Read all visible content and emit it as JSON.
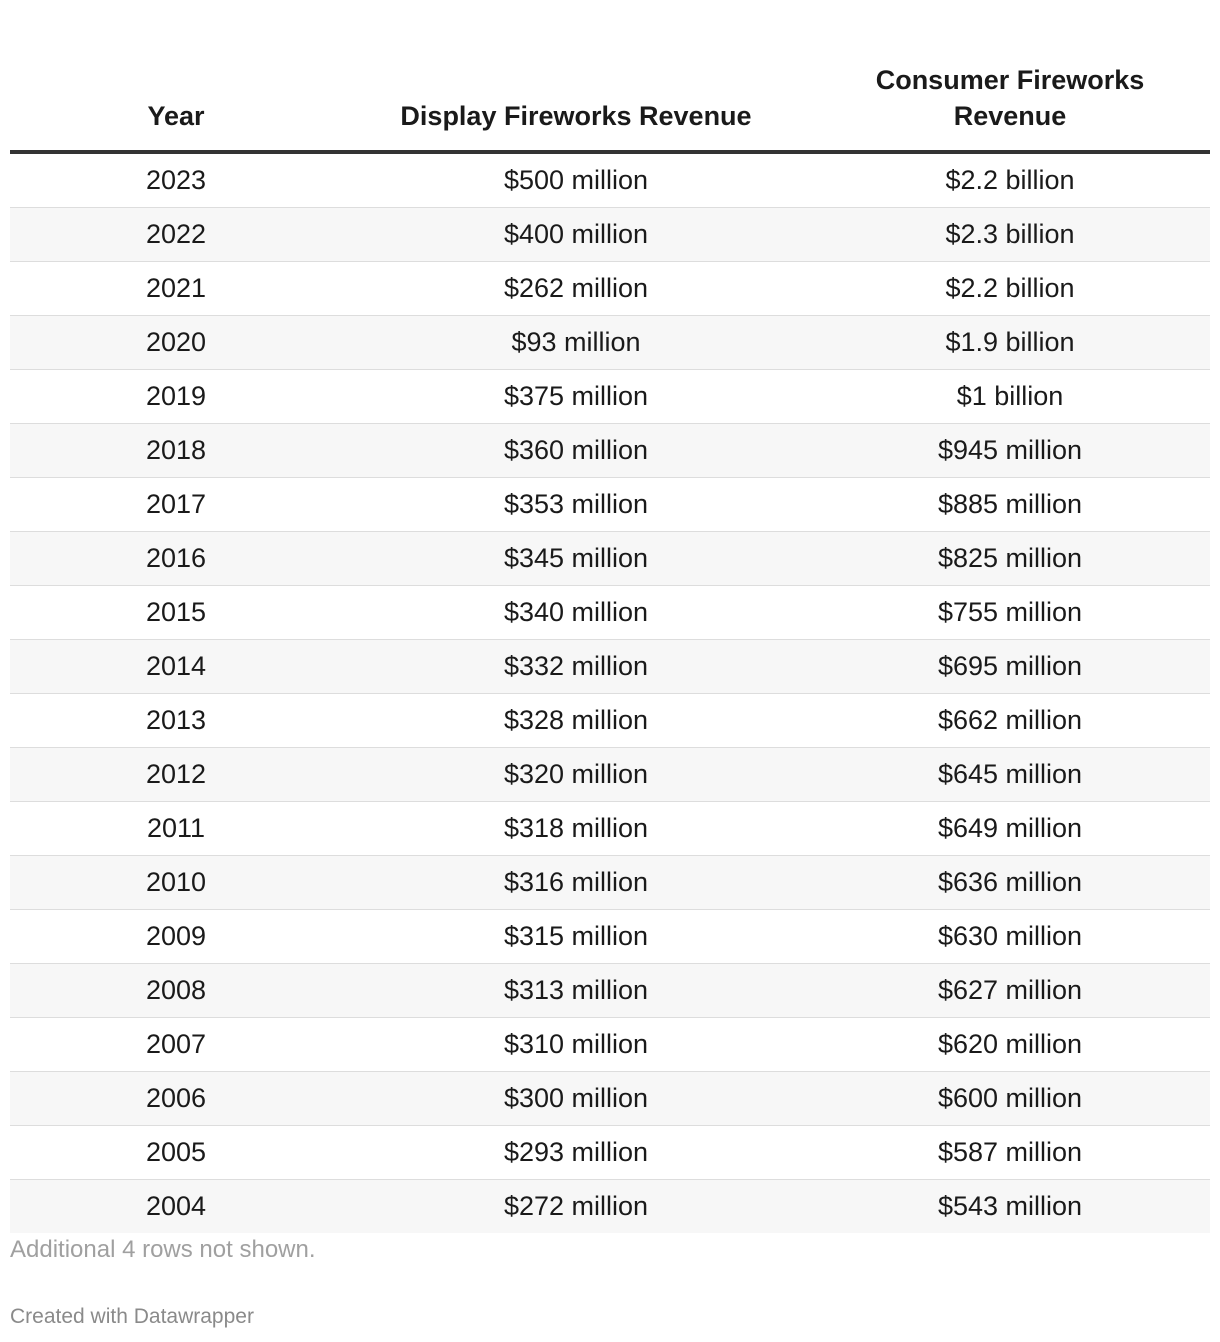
{
  "chart_data": {
    "type": "table",
    "columns": [
      "Year",
      "Display Fireworks Revenue",
      "Consumer Fireworks Revenue"
    ],
    "rows": [
      [
        "2023",
        "$500 million",
        "$2.2 billion"
      ],
      [
        "2022",
        "$400 million",
        "$2.3 billion"
      ],
      [
        "2021",
        "$262 million",
        "$2.2 billion"
      ],
      [
        "2020",
        "$93 million",
        "$1.9 billion"
      ],
      [
        "2019",
        "$375 million",
        "$1 billion"
      ],
      [
        "2018",
        "$360 million",
        "$945 million"
      ],
      [
        "2017",
        "$353 million",
        "$885 million"
      ],
      [
        "2016",
        "$345 million",
        "$825 million"
      ],
      [
        "2015",
        "$340 million",
        "$755 million"
      ],
      [
        "2014",
        "$332 million",
        "$695 million"
      ],
      [
        "2013",
        "$328 million",
        "$662 million"
      ],
      [
        "2012",
        "$320 million",
        "$645 million"
      ],
      [
        "2011",
        "$318 million",
        "$649 million"
      ],
      [
        "2010",
        "$316 million",
        "$636 million"
      ],
      [
        "2009",
        "$315 million",
        "$630 million"
      ],
      [
        "2008",
        "$313 million",
        "$627 million"
      ],
      [
        "2007",
        "$310 million",
        "$620 million"
      ],
      [
        "2006",
        "$300 million",
        "$600 million"
      ],
      [
        "2005",
        "$293 million",
        "$587 million"
      ],
      [
        "2004",
        "$272 million",
        "$543 million"
      ]
    ],
    "note": "Additional 4 rows not shown.",
    "credit": "Created with Datawrapper"
  }
}
